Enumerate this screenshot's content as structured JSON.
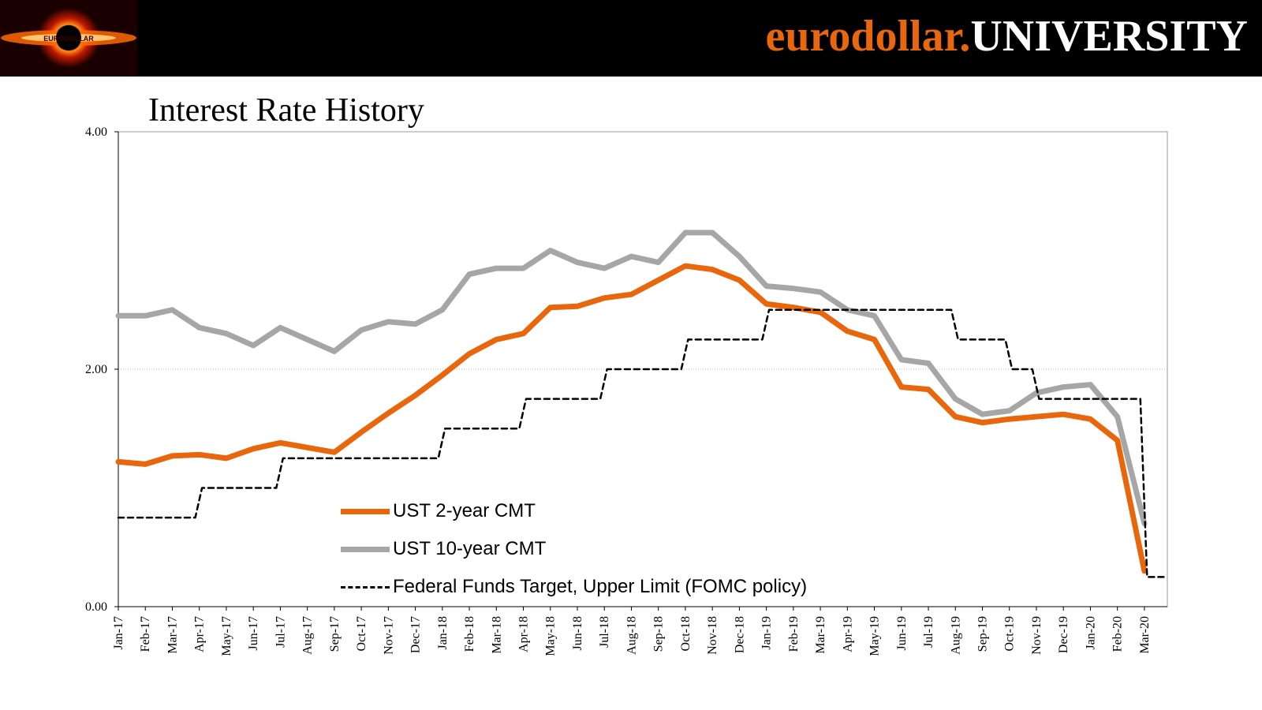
{
  "header": {
    "brand_part1": "eurodollar.",
    "brand_part2": "UNIVERSITY",
    "logo_icon": "black-hole-logo-icon",
    "logo_text": "EURODOLLAR"
  },
  "colors": {
    "orange": "#e8660c",
    "gray": "#a6a6a6",
    "black": "#000000"
  },
  "chart_data": {
    "type": "line",
    "title": "Interest Rate History",
    "xlabel": "",
    "ylabel": "",
    "ylim": [
      0,
      4
    ],
    "yticks": [
      "0.00",
      "2.00",
      "4.00"
    ],
    "categories": [
      "Jan-17",
      "Feb-17",
      "Mar-17",
      "Apr-17",
      "May-17",
      "Jun-17",
      "Jul-17",
      "Aug-17",
      "Sep-17",
      "Oct-17",
      "Nov-17",
      "Dec-17",
      "Jan-18",
      "Feb-18",
      "Mar-18",
      "Apr-18",
      "May-18",
      "Jun-18",
      "Jul-18",
      "Aug-18",
      "Sep-18",
      "Oct-18",
      "Nov-18",
      "Dec-18",
      "Jan-19",
      "Feb-19",
      "Mar-19",
      "Apr-19",
      "May-19",
      "Jun-19",
      "Jul-19",
      "Aug-19",
      "Sep-19",
      "Oct-19",
      "Nov-19",
      "Dec-19",
      "Jan-20",
      "Feb-20",
      "Mar-20"
    ],
    "legend_position": "bottom-center-inside",
    "series": [
      {
        "name": "UST 2-year CMT",
        "style": "solid-thick",
        "values": [
          1.22,
          1.2,
          1.27,
          1.28,
          1.25,
          1.33,
          1.38,
          1.34,
          1.3,
          1.47,
          1.63,
          1.78,
          1.95,
          2.13,
          2.25,
          2.3,
          2.52,
          2.53,
          2.6,
          2.63,
          2.75,
          2.87,
          2.84,
          2.75,
          2.55,
          2.52,
          2.48,
          2.32,
          2.25,
          1.85,
          1.83,
          1.6,
          1.55,
          1.58,
          1.6,
          1.62,
          1.58,
          1.4,
          0.3
        ]
      },
      {
        "name": "UST 10-year CMT",
        "style": "solid-thick",
        "values": [
          2.45,
          2.45,
          2.5,
          2.35,
          2.3,
          2.2,
          2.35,
          2.25,
          2.15,
          2.33,
          2.4,
          2.38,
          2.5,
          2.8,
          2.85,
          2.85,
          3.0,
          2.9,
          2.85,
          2.95,
          2.9,
          3.15,
          3.15,
          2.95,
          2.7,
          2.68,
          2.65,
          2.5,
          2.45,
          2.08,
          2.05,
          1.75,
          1.62,
          1.65,
          1.8,
          1.85,
          1.87,
          1.6,
          0.7
        ]
      },
      {
        "name": "Federal Funds Target, Upper Limit (FOMC policy)",
        "style": "dashed",
        "values": [
          0.75,
          0.75,
          0.75,
          1.0,
          1.0,
          1.0,
          1.25,
          1.25,
          1.25,
          1.25,
          1.25,
          1.25,
          1.5,
          1.5,
          1.5,
          1.75,
          1.75,
          1.75,
          2.0,
          2.0,
          2.0,
          2.25,
          2.25,
          2.25,
          2.5,
          2.5,
          2.5,
          2.5,
          2.5,
          2.5,
          2.5,
          2.25,
          2.25,
          2.0,
          1.75,
          1.75,
          1.75,
          1.75,
          0.25
        ]
      }
    ]
  }
}
